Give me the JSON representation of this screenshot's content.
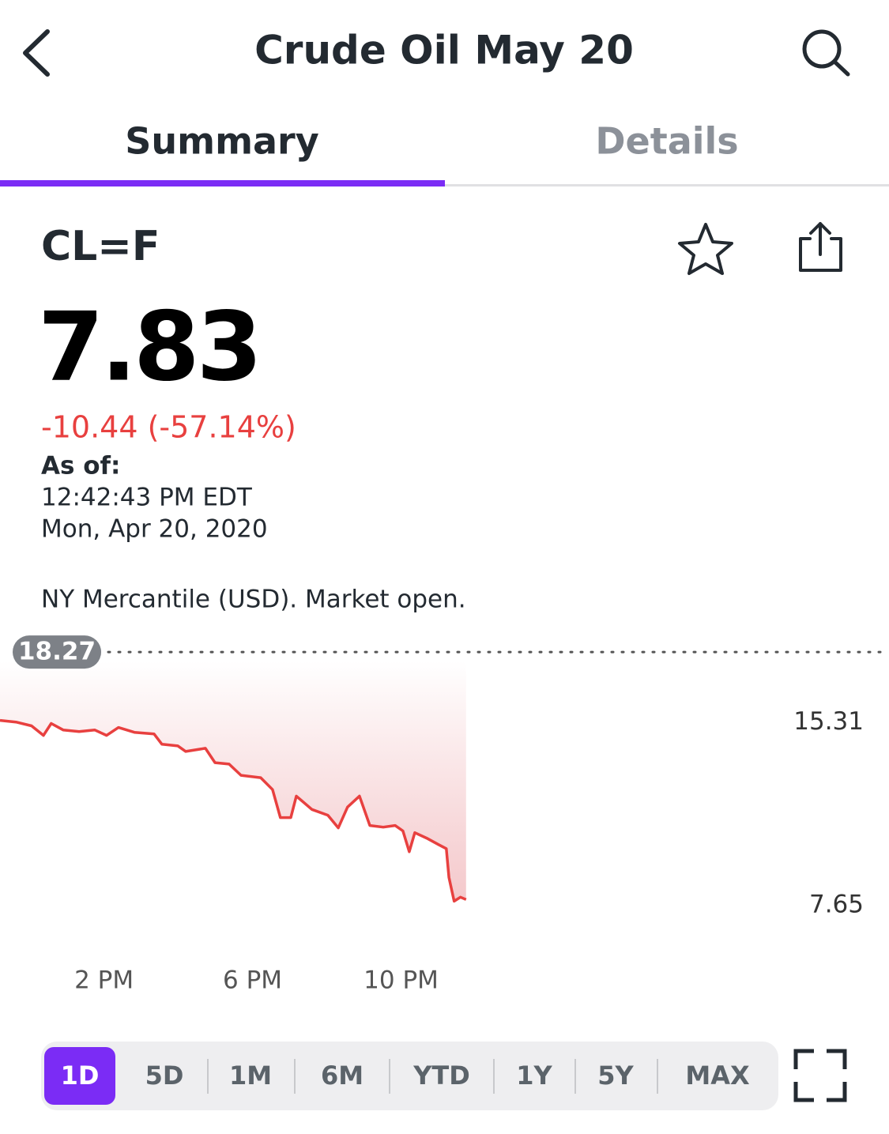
{
  "header": {
    "title": "Crude Oil May 20"
  },
  "tabs": {
    "items": [
      "Summary",
      "Details"
    ],
    "selected": "Summary"
  },
  "quote": {
    "symbol": "CL=F",
    "price": "7.83",
    "change": "-10.44 (-57.14%)",
    "as_of_label": "As of:",
    "time": "12:42:43 PM EDT",
    "date": "Mon, Apr 20, 2020",
    "exchange": "NY Mercantile (USD). Market open."
  },
  "chart_data": {
    "type": "line",
    "color": "#e8403f",
    "x": [
      11.2,
      11.63,
      12.05,
      12.37,
      12.58,
      12.9,
      13.33,
      13.75,
      14.07,
      14.39,
      14.82,
      15.35,
      15.56,
      15.99,
      16.2,
      16.73,
      16.99,
      17.37,
      17.69,
      18.22,
      18.54,
      18.75,
      19.03,
      19.18,
      19.6,
      20.03,
      20.31,
      20.56,
      20.88,
      21.16,
      21.52,
      21.84,
      22.05,
      22.22,
      22.37,
      22.69,
      23.01,
      23.22,
      23.29,
      23.43,
      23.6,
      23.75
    ],
    "values": [
      15.41,
      15.34,
      15.18,
      14.78,
      15.28,
      15.01,
      14.94,
      15.01,
      14.78,
      15.11,
      14.91,
      14.84,
      14.41,
      14.34,
      14.11,
      14.24,
      13.64,
      13.58,
      13.11,
      13.01,
      12.51,
      11.34,
      11.34,
      12.24,
      11.68,
      11.44,
      10.91,
      11.78,
      12.24,
      11.01,
      10.94,
      11.01,
      10.78,
      9.91,
      10.71,
      10.48,
      10.21,
      10.04,
      8.84,
      7.84,
      8.01,
      7.91
    ],
    "xlim": [
      11.2,
      35.14
    ],
    "ylim": [
      6.2,
      19.1
    ],
    "xticks": [
      {
        "value": 14,
        "label": "2 PM"
      },
      {
        "value": 18,
        "label": "6 PM"
      },
      {
        "value": 22,
        "label": "10 PM"
      }
    ],
    "yticks": [
      15.31,
      7.65
    ],
    "reference_line": {
      "value": 18.27
    }
  },
  "ranges": {
    "items": [
      "1D",
      "5D",
      "1M",
      "6M",
      "YTD",
      "1Y",
      "5Y",
      "MAX"
    ],
    "selected": "1D"
  }
}
